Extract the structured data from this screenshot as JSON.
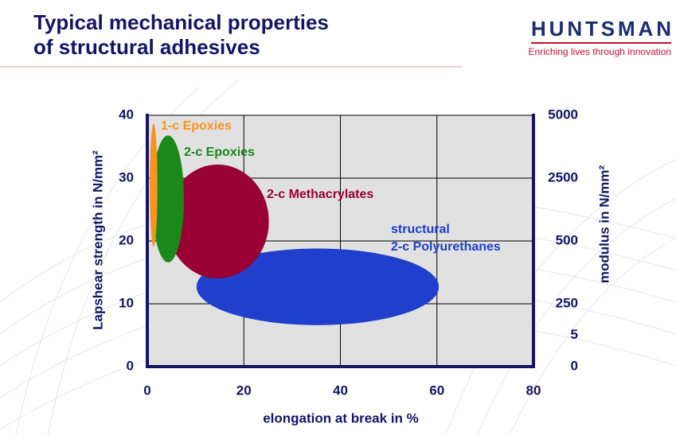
{
  "header": {
    "title_lines": [
      "Typical mechanical properties",
      "of structural adhesives"
    ],
    "logo": "HUNTSMAN",
    "tagline": "Enriching lives through innovation"
  },
  "chart_data": {
    "type": "ellipse",
    "x_label": "elongation at break  in  %",
    "y_label": "Lapshear strength  in  N/mm²",
    "y2_label": "modulus  in  N/mm²",
    "xlim": [
      0,
      80
    ],
    "xticks": [
      0,
      20,
      40,
      60,
      80
    ],
    "ylim": [
      0,
      40
    ],
    "yticks": [
      0,
      10,
      20,
      30,
      40
    ],
    "y2ticks": [
      0,
      5,
      250,
      500,
      2500,
      5000
    ],
    "y2tick_positions": [
      0,
      5,
      10,
      20,
      30,
      40
    ],
    "grid": true,
    "series": [
      {
        "name": "1-c Epoxies",
        "color": "#f7941d",
        "cx": 1.3,
        "cy": 28.9,
        "rx": 0.8,
        "ry": 9.8
      },
      {
        "name": "2-c Epoxies",
        "color": "#1a881a",
        "cx": 4.3,
        "cy": 26.7,
        "rx": 3.3,
        "ry": 10.1
      },
      {
        "name": "2-c Methacrylates",
        "color": "#990033",
        "cx": 14.6,
        "cy": 23.1,
        "rx": 10.5,
        "ry": 9.0
      },
      {
        "name": "structural 2-c Polyurethanes",
        "color": "#1f3fcc",
        "cx": 35.3,
        "cy": 12.7,
        "rx": 25.1,
        "ry": 6.1
      }
    ]
  }
}
